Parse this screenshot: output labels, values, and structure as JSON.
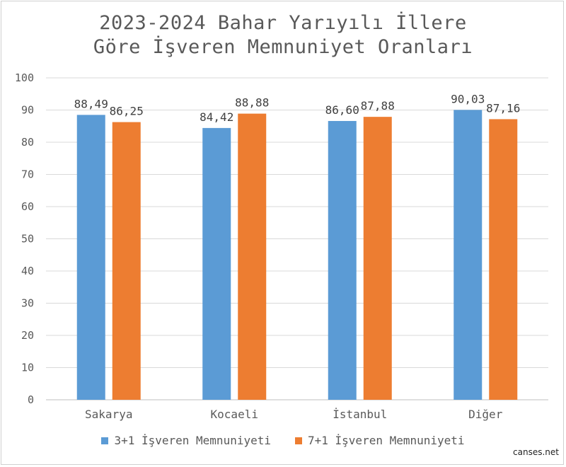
{
  "chart_data": {
    "type": "bar",
    "title_lines": [
      "2023-2024 Bahar Yarıyılı İllere",
      "Göre İşveren Memnuniyet Oranları"
    ],
    "categories": [
      "Sakarya",
      "Kocaeli",
      "İstanbul",
      "Diğer"
    ],
    "series": [
      {
        "name": "3+1 İşveren Memnuniyeti",
        "values": [
          88.49,
          84.42,
          86.6,
          90.03
        ],
        "labels": [
          "88,49",
          "84,42",
          "86,60",
          "90,03"
        ],
        "color": "#5B9BD5"
      },
      {
        "name": "7+1 İşveren Memnuniyeti",
        "values": [
          86.25,
          88.88,
          87.88,
          87.16
        ],
        "labels": [
          "86,25",
          "88,88",
          "87,88",
          "87,16"
        ],
        "color": "#ED7D31"
      }
    ],
    "ylim": [
      0,
      100
    ],
    "yticks": [
      0,
      10,
      20,
      30,
      40,
      50,
      60,
      70,
      80,
      90,
      100
    ],
    "grid": true,
    "legend_position": "bottom"
  },
  "watermark": "canses.net"
}
